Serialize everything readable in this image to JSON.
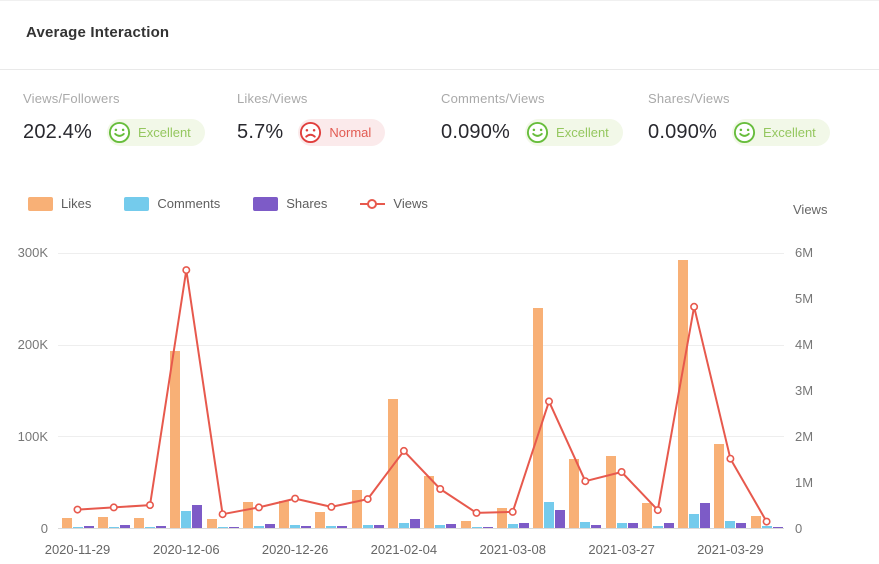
{
  "header": {
    "title": "Average Interaction"
  },
  "metrics": [
    {
      "label": "Views/Followers",
      "value": "202.4%",
      "rating": "Excellent",
      "sentiment": "positive"
    },
    {
      "label": "Likes/Views",
      "value": "5.7%",
      "rating": "Normal",
      "sentiment": "negative"
    },
    {
      "label": "Comments/Views",
      "value": "0.090%",
      "rating": "Excellent",
      "sentiment": "positive"
    },
    {
      "label": "Shares/Views",
      "value": "0.090%",
      "rating": "Excellent",
      "sentiment": "positive"
    }
  ],
  "legend": [
    {
      "label": "Likes",
      "type": "bar",
      "color": "#F8B076"
    },
    {
      "label": "Comments",
      "type": "bar",
      "color": "#74CBEC"
    },
    {
      "label": "Shares",
      "type": "bar",
      "color": "#7D5BC7"
    },
    {
      "label": "Views",
      "type": "line",
      "color": "#E7594D"
    }
  ],
  "colors": {
    "positive": "#67BD3B",
    "positive_text": "#95C75F",
    "positive_bg": "#F2F8E8",
    "negative": "#E03E3C",
    "negative_text": "#E25B52",
    "negative_bg": "#FBEAEB",
    "likes": "#F8B076",
    "comments": "#74CBEC",
    "shares": "#7D5BC7",
    "views": "#E7594D"
  },
  "chart_data": {
    "type": "bar+line",
    "n_points": 20,
    "x_tick_labels": [
      {
        "index": 0,
        "label": "2020-11-29"
      },
      {
        "index": 3,
        "label": "2020-12-06"
      },
      {
        "index": 6,
        "label": "2020-12-26"
      },
      {
        "index": 9,
        "label": "2021-02-04"
      },
      {
        "index": 12,
        "label": "2021-03-08"
      },
      {
        "index": 15,
        "label": "2021-03-27"
      },
      {
        "index": 18,
        "label": "2021-03-29"
      }
    ],
    "left_axis": {
      "max": 300000,
      "ticks": [
        {
          "value": 0,
          "label": "0"
        },
        {
          "value": 100000,
          "label": "100K"
        },
        {
          "value": 200000,
          "label": "200K"
        },
        {
          "value": 300000,
          "label": "300K"
        }
      ]
    },
    "right_axis": {
      "title": "Views",
      "max": 6000000,
      "ticks": [
        {
          "value": 0,
          "label": "0"
        },
        {
          "value": 1000000,
          "label": "1M"
        },
        {
          "value": 2000000,
          "label": "2M"
        },
        {
          "value": 3000000,
          "label": "3M"
        },
        {
          "value": 4000000,
          "label": "4M"
        },
        {
          "value": 5000000,
          "label": "5M"
        },
        {
          "value": 6000000,
          "label": "6M"
        }
      ]
    },
    "series": [
      {
        "name": "Likes",
        "type": "bar",
        "axis": "left",
        "values": [
          11000,
          12000,
          11000,
          193000,
          10000,
          28000,
          30000,
          17000,
          42000,
          141000,
          57000,
          8000,
          22000,
          240000,
          75000,
          78000,
          27000,
          292000,
          92000,
          13000
        ]
      },
      {
        "name": "Comments",
        "type": "bar",
        "axis": "left",
        "values": [
          1500,
          1500,
          1500,
          19000,
          1000,
          2000,
          3500,
          2000,
          3000,
          6000,
          3000,
          1000,
          4000,
          28500,
          7000,
          6000,
          2000,
          15500,
          8000,
          2000
        ]
      },
      {
        "name": "Shares",
        "type": "bar",
        "axis": "left",
        "values": [
          2000,
          3000,
          2000,
          25000,
          1500,
          4000,
          2000,
          2000,
          3000,
          9500,
          4300,
          1000,
          5000,
          20000,
          3000,
          5500,
          5000,
          27000,
          6000,
          1000
        ]
      },
      {
        "name": "Views",
        "type": "line",
        "axis": "right",
        "values": [
          400000,
          450000,
          500000,
          5620000,
          300000,
          450000,
          640000,
          460000,
          630000,
          1680000,
          850000,
          330000,
          350000,
          2760000,
          1020000,
          1220000,
          390000,
          4820000,
          1510000,
          140000
        ]
      }
    ]
  }
}
